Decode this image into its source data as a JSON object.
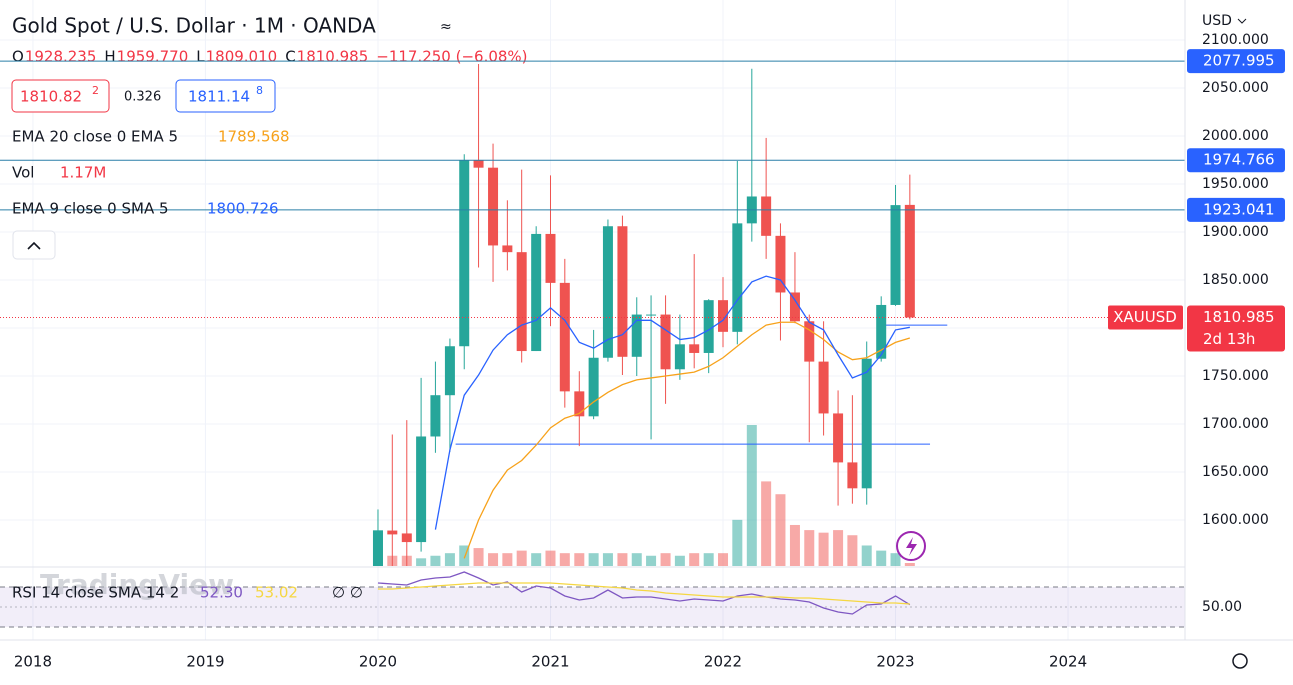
{
  "header": {
    "title": "Gold Spot / U.S. Dollar · 1M · OANDA",
    "ohlc": [
      {
        "label": "O",
        "value": "1928.235"
      },
      {
        "label": "H",
        "value": "1959.770"
      },
      {
        "label": "L",
        "value": "1809.010"
      },
      {
        "label": "C",
        "value": "1810.985"
      }
    ],
    "change": "−117.250 (−6.08%)",
    "sell": "1810.82",
    "sell_sup": "2",
    "spread": "0.326",
    "buy": "1811.14",
    "buy_sup": "8",
    "currency": "USD",
    "watermark": "TradingView"
  },
  "legend": {
    "ema_orange": "EMA 20 close 0 EMA 5",
    "vol": "Vol",
    "vol_value": "1.17M",
    "ema_blue": "EMA 9 close 0 SMA 5",
    "rsi": "RSI 14 close SMA 14 2",
    "rsi_value": "52.30",
    "rsi_sma_value": "53.02",
    "rsi_na": "∅ ∅"
  },
  "chart_data": {
    "type": "candlestick",
    "symbol": "XAUUSD",
    "countdown": "2d 13h",
    "x": [
      2020,
      2020.083,
      2020.167,
      2020.25,
      2020.333,
      2020.417,
      2020.5,
      2020.583,
      2020.667,
      2020.75,
      2020.833,
      2020.917,
      2021,
      2021.083,
      2021.167,
      2021.25,
      2021.333,
      2021.417,
      2021.5,
      2021.583,
      2021.667,
      2021.75,
      2021.833,
      2021.917,
      2022,
      2022.083,
      2022.167,
      2022.25,
      2022.333,
      2022.417,
      2022.5,
      2022.583,
      2022.667,
      2022.75,
      2022.833,
      2022.917,
      2023,
      2023.083
    ],
    "open": [
      1517,
      1589,
      1586,
      1577,
      1687,
      1730,
      1781,
      1975,
      1967,
      1886,
      1879,
      1776,
      1898,
      1847,
      1734,
      1708,
      1769,
      1906,
      1770,
      1814,
      1814,
      1757,
      1783,
      1774,
      1829,
      1796,
      1909,
      1937,
      1896,
      1837,
      1807,
      1765,
      1711,
      1660,
      1633,
      1768,
      1824,
      1928.235
    ],
    "high": [
      1611,
      1689,
      1704,
      1748,
      1765,
      1789,
      1981,
      2075,
      1992,
      1933,
      1965,
      1906,
      1959,
      1872,
      1755,
      1798,
      1913,
      1917,
      1832,
      1834,
      1834,
      1814,
      1877,
      1830,
      1853,
      1974,
      2070,
      1998,
      1909,
      1879,
      1814,
      1807,
      1735,
      1730,
      1786,
      1833,
      1949,
      1959.77
    ],
    "low": [
      1517,
      1547,
      1451,
      1567,
      1670,
      1671,
      1757,
      1863,
      1848,
      1860,
      1764,
      1776,
      1802,
      1717,
      1677,
      1705,
      1765,
      1751,
      1750,
      1684,
      1721,
      1746,
      1758,
      1753,
      1780,
      1783,
      1890,
      1872,
      1787,
      1805,
      1681,
      1688,
      1615,
      1617,
      1616,
      1765,
      1823,
      1809.01
    ],
    "close": [
      1589,
      1585,
      1577,
      1687,
      1730,
      1781,
      1975,
      1967,
      1886,
      1879,
      1776,
      1898,
      1847,
      1734,
      1708,
      1769,
      1906,
      1770,
      1814,
      1814,
      1757,
      1783,
      1774,
      1829,
      1796,
      1909,
      1937,
      1896,
      1837,
      1807,
      1765,
      1711,
      1660,
      1633,
      1768,
      1824,
      1928,
      1810.985
    ],
    "volume": [
      14,
      4,
      4,
      3,
      4,
      5,
      8,
      7,
      5,
      5,
      6,
      5,
      6,
      5,
      5,
      5,
      5,
      5,
      5,
      4,
      5,
      4,
      5,
      5,
      5,
      18,
      55,
      33,
      28,
      16,
      14,
      13,
      14,
      12,
      8,
      6,
      5,
      1.17
    ],
    "up_color": "#26a69a",
    "down_color": "#ef5350",
    "lines": [
      {
        "name": "EMA 20 close 0 EMA 5",
        "color": "#f7a21b",
        "values": [
          null,
          null,
          null,
          null,
          null,
          null,
          1560,
          1600,
          1631,
          1652,
          1662,
          1678,
          1696,
          1706,
          1711,
          1723,
          1733,
          1741,
          1746,
          1748,
          1750,
          1752,
          1754,
          1760,
          1769,
          1781,
          1793,
          1803,
          1806,
          1806,
          1798,
          1788,
          1775,
          1767,
          1769,
          1777,
          1785,
          1789.568
        ]
      },
      {
        "name": "EMA 9 close 0 SMA 5",
        "color": "#2962ff",
        "values": [
          null,
          null,
          null,
          null,
          1590,
          1673,
          1730,
          1751,
          1777,
          1793,
          1803,
          1808,
          1821,
          1808,
          1785,
          1779,
          1788,
          1793,
          1808,
          1808,
          1798,
          1788,
          1790,
          1798,
          1808,
          1829,
          1848,
          1854,
          1850,
          1829,
          1806,
          1798,
          1772,
          1748,
          1754,
          1772,
          1798,
          1800.726
        ]
      }
    ],
    "price_lines": [
      2077.995,
      1974.766,
      1923.041
    ],
    "trend_lines": [
      {
        "y": 1679,
        "x": [
          2020.45,
          2023.2
        ]
      },
      {
        "y": 1803,
        "x": [
          2022.9,
          2023.3
        ]
      }
    ],
    "xlim": [
      2017.809,
      2024.678
    ],
    "xticks": [
      2018,
      2019,
      2020,
      2021,
      2022,
      2023,
      2024
    ],
    "ylim": [
      1552.08,
      2141.67
    ],
    "yticks": [
      {
        "value": 1600,
        "label": "1600.000"
      },
      {
        "value": 1650,
        "label": "1650.000"
      },
      {
        "value": 1700,
        "label": "1700.000"
      },
      {
        "value": 1750,
        "label": "1750.000"
      },
      {
        "value": 1800,
        "label": "1800.000"
      },
      {
        "value": 1850,
        "label": "1850.000"
      },
      {
        "value": 1900,
        "label": "1900.000"
      },
      {
        "value": 1950,
        "label": "1950.000"
      },
      {
        "value": 2000,
        "label": "2000.000"
      },
      {
        "value": 2050,
        "label": "2050.000"
      },
      {
        "value": 2100,
        "label": "2100.000"
      }
    ],
    "grid": true,
    "rsi": {
      "ylim": [
        17,
        89
      ],
      "bands": [
        30,
        70
      ],
      "yticks": [
        {
          "value": 50,
          "label": "50.00"
        }
      ],
      "series": [
        {
          "name": "RSI",
          "color": "#7e57c2",
          "values": [
            74,
            73,
            72,
            77,
            79,
            80,
            85,
            79,
            72,
            75,
            65,
            71,
            69,
            61,
            57,
            59,
            67,
            59,
            60,
            60,
            58,
            56,
            58,
            57,
            56,
            61,
            63,
            60,
            58,
            57,
            55,
            49,
            45,
            43,
            52,
            53,
            61,
            52.3
          ]
        },
        {
          "name": "SMA",
          "color": "#f5d742",
          "values": [
            68,
            68,
            69,
            70,
            71,
            72,
            73,
            74,
            74,
            74,
            74,
            74,
            74,
            73,
            72,
            71,
            70,
            69,
            67,
            66,
            64,
            63,
            62,
            61,
            60,
            60,
            60,
            60,
            60,
            59,
            59,
            58,
            57,
            56,
            55,
            54,
            54,
            53.02
          ]
        }
      ]
    }
  }
}
